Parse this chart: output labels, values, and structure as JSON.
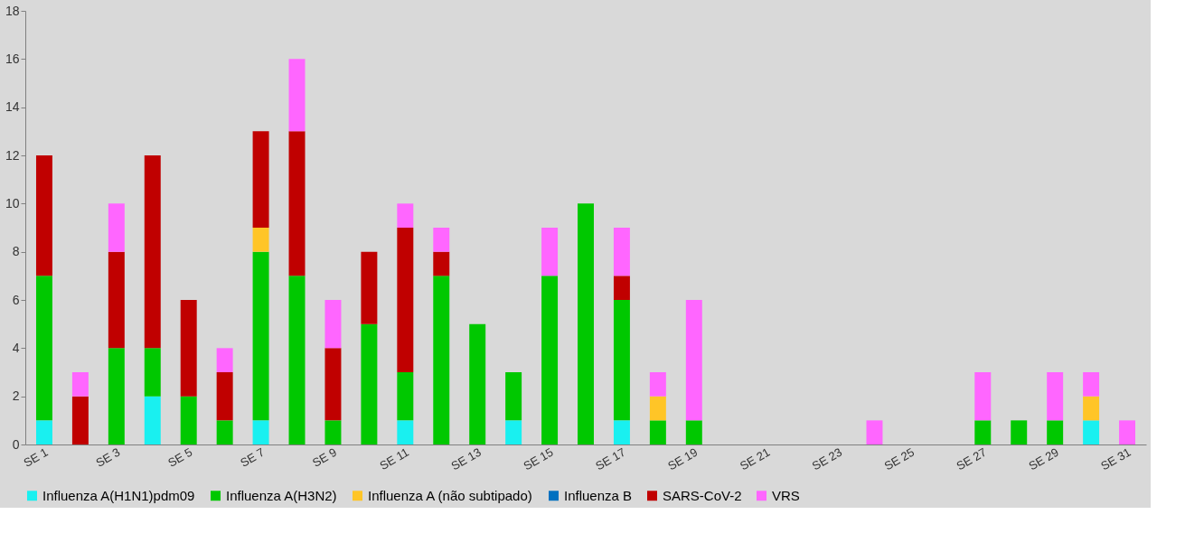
{
  "chart_data": {
    "type": "bar",
    "stacked": true,
    "legend": "bottom",
    "categories": [
      "SE 1",
      null,
      "SE 3",
      null,
      "SE 5",
      null,
      "SE 7",
      null,
      "SE 9",
      null,
      "SE 11",
      null,
      "SE 13",
      null,
      "SE 15",
      null,
      "SE 17",
      null,
      "SE 19",
      null,
      "SE 21",
      null,
      "SE 23",
      null,
      "SE 25",
      null,
      "SE 27",
      null,
      "SE 29",
      null,
      "SE 31"
    ],
    "ylim": [
      0,
      18
    ],
    "yticks": [
      0,
      2,
      4,
      6,
      8,
      10,
      12,
      14,
      16,
      18
    ],
    "series": [
      {
        "name": "Influenza A(H1N1)pdm09",
        "color": "#19f0f0",
        "values": [
          1,
          0,
          0,
          2,
          0,
          0,
          1,
          0,
          0,
          0,
          1,
          0,
          0,
          1,
          0,
          0,
          1,
          0,
          0,
          0,
          0,
          0,
          0,
          0,
          0,
          0,
          0,
          0,
          0,
          1,
          0
        ]
      },
      {
        "name": "Influenza A(H3N2)",
        "color": "#00c800",
        "values": [
          6,
          0,
          4,
          2,
          2,
          1,
          7,
          7,
          1,
          5,
          2,
          7,
          5,
          2,
          7,
          10,
          5,
          1,
          1,
          0,
          0,
          0,
          0,
          0,
          0,
          0,
          1,
          1,
          1,
          0,
          0
        ]
      },
      {
        "name": "Influenza A (não subtipado)",
        "color": "#ffc527",
        "values": [
          0,
          0,
          0,
          0,
          0,
          0,
          1,
          0,
          0,
          0,
          0,
          0,
          0,
          0,
          0,
          0,
          0,
          1,
          0,
          0,
          0,
          0,
          0,
          0,
          0,
          0,
          0,
          0,
          0,
          1,
          0
        ]
      },
      {
        "name": "Influenza B",
        "color": "#0070c0",
        "values": [
          0,
          0,
          0,
          0,
          0,
          0,
          0,
          0,
          0,
          0,
          0,
          0,
          0,
          0,
          0,
          0,
          0,
          0,
          0,
          0,
          0,
          0,
          0,
          0,
          0,
          0,
          0,
          0,
          0,
          0,
          0
        ]
      },
      {
        "name": "SARS-CoV-2",
        "color": "#c00000",
        "values": [
          5,
          2,
          4,
          8,
          4,
          2,
          4,
          6,
          3,
          3,
          6,
          1,
          0,
          0,
          0,
          0,
          1,
          0,
          0,
          0,
          0,
          0,
          0,
          0,
          0,
          0,
          0,
          0,
          0,
          0,
          0
        ]
      },
      {
        "name": "VRS",
        "color": "#ff66ff",
        "values": [
          0,
          1,
          2,
          0,
          0,
          1,
          0,
          3,
          2,
          0,
          1,
          1,
          0,
          0,
          2,
          0,
          2,
          1,
          5,
          0,
          0,
          0,
          0,
          1,
          0,
          0,
          2,
          0,
          2,
          1,
          1
        ]
      }
    ]
  }
}
